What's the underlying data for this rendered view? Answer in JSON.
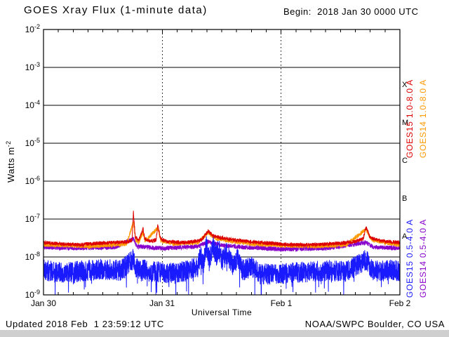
{
  "header": {
    "title": "GOES Xray Flux (1-minute data)",
    "begin_label": "Begin:  2018 Jan 30 0000 UTC"
  },
  "footer": {
    "updated": "Updated 2018 Feb  1 23:59:12 UTC",
    "credit": "NOAA/SWPC Boulder, CO USA"
  },
  "axes": {
    "ylabel": "Watts m",
    "ylabel_exp": "-2",
    "xlabel": "Universal Time"
  },
  "legend": {
    "items": [
      {
        "label": "GOES15 1.0-8.0 A",
        "color": "#dd0000"
      },
      {
        "label": "GOES14 1.0-8.0 A",
        "color": "#ff9900"
      },
      {
        "label": "GOES15 0.5-4.0 A",
        "color": "#1a1aff"
      },
      {
        "label": "GOES14 0.5-4.0 A",
        "color": "#8800cc"
      }
    ]
  },
  "chart_data": {
    "type": "line",
    "title": "GOES Xray Flux (1-minute data)",
    "xlabel": "Universal Time",
    "ylabel": "Watts m^-2",
    "x_unit": "days since 2018 Jan 30 0000 UTC",
    "xlim": [
      0,
      3
    ],
    "ylim": [
      1e-09,
      0.01
    ],
    "y_ticks_exp": [
      -2,
      -3,
      -4,
      -5,
      -6,
      -7,
      -8,
      -9
    ],
    "x_ticks": [
      {
        "t": 0,
        "label": "Jan 30"
      },
      {
        "t": 1,
        "label": "Jan 31"
      },
      {
        "t": 2,
        "label": "Feb 1"
      },
      {
        "t": 3,
        "label": "Feb 2"
      }
    ],
    "flare_classes": [
      {
        "label": "X",
        "exp": -3.5
      },
      {
        "label": "M",
        "exp": -4.5
      },
      {
        "label": "C",
        "exp": -5.5
      },
      {
        "label": "B",
        "exp": -6.5
      },
      {
        "label": "A",
        "exp": -7.5
      }
    ],
    "grid": {
      "h_lines_exp": [
        -3,
        -4,
        -5,
        -6,
        -7,
        -8
      ],
      "v_dashed_t": [
        1,
        2
      ]
    },
    "series": [
      {
        "name": "GOES14 0.5-4.0 A",
        "color": "#8800cc",
        "noise_dex": 0.06,
        "points": [
          [
            0.0,
            1.8e-08
          ],
          [
            0.3,
            1.7e-08
          ],
          [
            0.6,
            1.8e-08
          ],
          [
            0.757,
            3e-08
          ],
          [
            0.79,
            1.9e-08
          ],
          [
            1.0,
            1.7e-08
          ],
          [
            1.3,
            1.9e-08
          ],
          [
            1.385,
            2.5e-08
          ],
          [
            1.5,
            2e-08
          ],
          [
            1.7,
            1.8e-08
          ],
          [
            2.0,
            1.6e-08
          ],
          [
            2.4,
            1.7e-08
          ],
          [
            2.715,
            2.4e-08
          ],
          [
            2.78,
            1.8e-08
          ],
          [
            3.0,
            1.7e-08
          ]
        ]
      },
      {
        "name": "GOES14 1.0-8.0 A",
        "color": "#ff9900",
        "noise_dex": 0.055,
        "points": [
          [
            0.0,
            2.1e-08
          ],
          [
            0.2,
            2e-08
          ],
          [
            0.4,
            1.9e-08
          ],
          [
            0.6,
            2.1e-08
          ],
          [
            0.7,
            2.2e-08
          ],
          [
            0.757,
            8.5e-08
          ],
          [
            0.775,
            2.9e-08
          ],
          [
            0.8,
            2.4e-08
          ],
          [
            0.838,
            4.4e-08
          ],
          [
            0.855,
            2.6e-08
          ],
          [
            0.962,
            5.8e-08
          ],
          [
            0.988,
            2.7e-08
          ],
          [
            1.1,
            2.2e-08
          ],
          [
            1.3,
            2.4e-08
          ],
          [
            1.385,
            4.3e-08
          ],
          [
            1.45,
            3.1e-08
          ],
          [
            1.55,
            2.7e-08
          ],
          [
            1.75,
            2.2e-08
          ],
          [
            2.0,
            2e-08
          ],
          [
            2.3,
            1.9e-08
          ],
          [
            2.55,
            2.1e-08
          ],
          [
            2.715,
            5.4e-08
          ],
          [
            2.76,
            2.8e-08
          ],
          [
            2.9,
            2.3e-08
          ],
          [
            3.0,
            2.1e-08
          ]
        ]
      },
      {
        "name": "GOES15 1.0-8.0 A",
        "color": "#dd0000",
        "noise_dex": 0.05,
        "points": [
          [
            0.0,
            2.4e-08
          ],
          [
            0.15,
            2.2e-08
          ],
          [
            0.3,
            2.1e-08
          ],
          [
            0.45,
            2.3e-08
          ],
          [
            0.6,
            2.4e-08
          ],
          [
            0.7,
            2.5e-08
          ],
          [
            0.745,
            2.7e-08
          ],
          [
            0.757,
            1.5e-07
          ],
          [
            0.772,
            3.4e-08
          ],
          [
            0.8,
            2.7e-08
          ],
          [
            0.838,
            5.5e-08
          ],
          [
            0.852,
            3e-08
          ],
          [
            0.9,
            2.6e-08
          ],
          [
            0.948,
            2.8e-08
          ],
          [
            0.962,
            7.2e-08
          ],
          [
            0.985,
            3e-08
          ],
          [
            1.05,
            2.5e-08
          ],
          [
            1.2,
            2.4e-08
          ],
          [
            1.33,
            2.8e-08
          ],
          [
            1.385,
            4.8e-08
          ],
          [
            1.43,
            3.6e-08
          ],
          [
            1.5,
            3.2e-08
          ],
          [
            1.6,
            2.8e-08
          ],
          [
            1.75,
            2.5e-08
          ],
          [
            1.9,
            2.3e-08
          ],
          [
            2.1,
            2.1e-08
          ],
          [
            2.3,
            2.1e-08
          ],
          [
            2.5,
            2.3e-08
          ],
          [
            2.62,
            2.5e-08
          ],
          [
            2.69,
            3e-08
          ],
          [
            2.715,
            6.2e-08
          ],
          [
            2.75,
            3.2e-08
          ],
          [
            2.85,
            2.6e-08
          ],
          [
            3.0,
            2.4e-08
          ]
        ]
      },
      {
        "name": "GOES15 0.5-4.0 A",
        "color": "#1a1aff",
        "noise_dex": 0.28,
        "down_spike": {
          "p": 0.03,
          "dex": 0.55
        },
        "points": [
          [
            0.0,
            4.5e-09
          ],
          [
            0.15,
            3.8e-09
          ],
          [
            0.3,
            4.2e-09
          ],
          [
            0.5,
            4.8e-09
          ],
          [
            0.65,
            4.4e-09
          ],
          [
            0.757,
            9e-09
          ],
          [
            0.78,
            5e-09
          ],
          [
            0.9,
            4.2e-09
          ],
          [
            1.05,
            3.8e-09
          ],
          [
            1.2,
            4.2e-09
          ],
          [
            1.3,
            5.5e-09
          ],
          [
            1.325,
            1.3e-08
          ],
          [
            1.345,
            6e-09
          ],
          [
            1.37,
            2.2e-08
          ],
          [
            1.395,
            8e-09
          ],
          [
            1.425,
            2e-08
          ],
          [
            1.455,
            1.1e-08
          ],
          [
            1.475,
            1.7e-08
          ],
          [
            1.5,
            7.5e-09
          ],
          [
            1.545,
            1.3e-08
          ],
          [
            1.59,
            6e-09
          ],
          [
            1.63,
            9e-09
          ],
          [
            1.68,
            4.5e-09
          ],
          [
            1.75,
            5.5e-09
          ],
          [
            1.82,
            3.5e-09
          ],
          [
            2.0,
            3.6e-09
          ],
          [
            2.2,
            4e-09
          ],
          [
            2.4,
            4.4e-09
          ],
          [
            2.55,
            4.2e-09
          ],
          [
            2.715,
            8.5e-09
          ],
          [
            2.78,
            4.2e-09
          ],
          [
            2.9,
            4.5e-09
          ],
          [
            3.0,
            4.3e-09
          ]
        ]
      }
    ]
  }
}
